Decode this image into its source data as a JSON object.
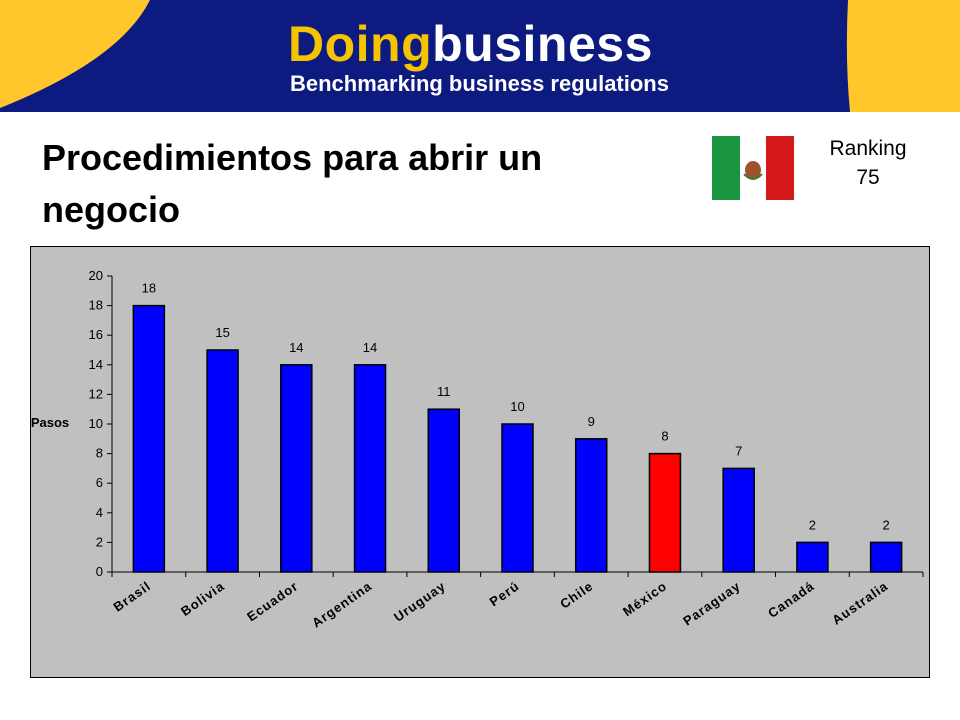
{
  "header": {
    "logo_part1": "Doing",
    "logo_part2": "business",
    "tagline": "Benchmarking business regulations"
  },
  "slide": {
    "title": "Procedimientos para abrir un negocio",
    "ranking_label": "Ranking",
    "ranking_value": "75",
    "flag_icon": "mexico-flag"
  },
  "colors": {
    "banner_navy": "#0d1a80",
    "banner_yellow": "#ffc72c",
    "bar_default": "#0000ff",
    "bar_highlight": "#ff0000",
    "plot_background": "#c0c0c0"
  },
  "chart_data": {
    "type": "bar",
    "categories": [
      "Brasil",
      "Bolivia",
      "Ecuador",
      "Argentina",
      "Uruguay",
      "Perú",
      "Chile",
      "México",
      "Paraguay",
      "Canadá",
      "Australia"
    ],
    "values": [
      18,
      15,
      14,
      14,
      11,
      10,
      9,
      8,
      7,
      2,
      2
    ],
    "highlight": "México",
    "ylabel": "Pasos",
    "xlabel": "",
    "ylim": [
      0,
      20
    ],
    "yticks": [
      0,
      2,
      4,
      6,
      8,
      10,
      12,
      14,
      16,
      18,
      20
    ],
    "grid": false,
    "legend": "none"
  }
}
